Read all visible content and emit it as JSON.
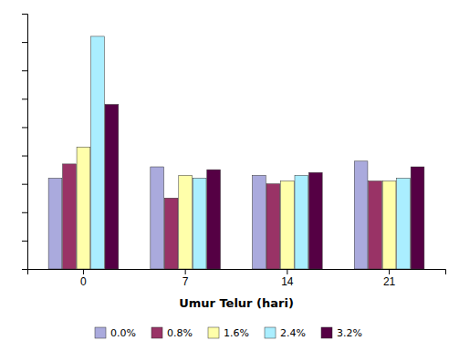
{
  "chart_data": {
    "type": "bar",
    "xlabel": "Umur Telur (hari)",
    "categories": [
      "0",
      "7",
      "14",
      "21"
    ],
    "series": [
      {
        "name": "0.0%",
        "color": "#aaaadd",
        "values": [
          3.2,
          3.6,
          3.3,
          3.8
        ]
      },
      {
        "name": "0.8%",
        "color": "#993366",
        "values": [
          3.7,
          2.5,
          3.0,
          3.1
        ]
      },
      {
        "name": "1.6%",
        "color": "#ffffaa",
        "values": [
          4.3,
          3.3,
          3.1,
          3.1
        ]
      },
      {
        "name": "2.4%",
        "color": "#aaeeff",
        "values": [
          8.2,
          3.2,
          3.3,
          3.2
        ]
      },
      {
        "name": "3.2%",
        "color": "#550044",
        "values": [
          5.8,
          3.5,
          3.4,
          3.6
        ]
      }
    ],
    "ylim": [
      0,
      9
    ],
    "yticks": [
      0,
      1,
      2,
      3,
      4,
      5,
      6,
      7,
      8,
      9
    ],
    "tick_labels": "x",
    "grid": false,
    "legend": "bottom"
  }
}
